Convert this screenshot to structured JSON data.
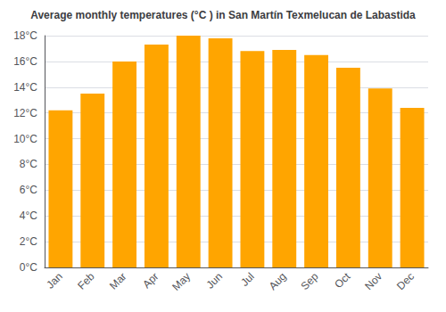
{
  "chart_data": {
    "type": "bar",
    "title": "Average monthly temperatures (°C ) in San Martín Texmelucan de Labastida",
    "categories": [
      "Jan",
      "Feb",
      "Mar",
      "Apr",
      "May",
      "Jun",
      "Jul",
      "Aug",
      "Sep",
      "Oct",
      "Nov",
      "Dec"
    ],
    "values": [
      12.2,
      13.5,
      16.0,
      17.3,
      18.0,
      17.8,
      16.8,
      16.9,
      16.5,
      15.5,
      13.9,
      12.4
    ],
    "color": "#FFA500",
    "ylim": [
      0,
      18
    ],
    "yticks": [
      {
        "value": 0,
        "label": "0°C"
      },
      {
        "value": 2,
        "label": "2°C"
      },
      {
        "value": 4,
        "label": "4°C"
      },
      {
        "value": 6,
        "label": "6°C"
      },
      {
        "value": 8,
        "label": "8°C"
      },
      {
        "value": 10,
        "label": "10°C"
      },
      {
        "value": 12,
        "label": "12°C"
      },
      {
        "value": 14,
        "label": "14°C"
      },
      {
        "value": 16,
        "label": "16°C"
      },
      {
        "value": 18,
        "label": "18°C"
      }
    ],
    "grid": true
  }
}
